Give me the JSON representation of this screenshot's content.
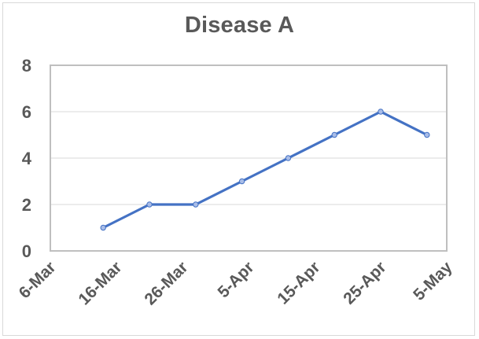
{
  "chart_data": {
    "type": "line",
    "title": "Disease A",
    "xlabel": "",
    "ylabel": "",
    "x_tick_labels": [
      "6-Mar",
      "16-Mar",
      "26-Mar",
      "5-Apr",
      "15-Apr",
      "25-Apr",
      "5-May"
    ],
    "y_tick_labels": [
      "0",
      "2",
      "4",
      "6",
      "8"
    ],
    "ylim": [
      0,
      8
    ],
    "x_range_days_from_6Mar": [
      0,
      60
    ],
    "grid": "horizontal",
    "legend": "none",
    "series": [
      {
        "name": "Disease A",
        "color": "#4472c4",
        "marker_fill": "#a9bde8",
        "x": [
          "14-Mar",
          "21-Mar",
          "28-Mar",
          "4-Apr",
          "11-Apr",
          "18-Apr",
          "25-Apr",
          "2-May"
        ],
        "x_days": [
          8,
          15,
          22,
          29,
          36,
          43,
          50,
          57
        ],
        "values": [
          1,
          2,
          2,
          3,
          4,
          5,
          6,
          5
        ]
      }
    ]
  },
  "colors": {
    "text": "#595959",
    "grid": "#d9d9d9",
    "plot_border": "#bfbfbf",
    "line": "#4472c4"
  }
}
